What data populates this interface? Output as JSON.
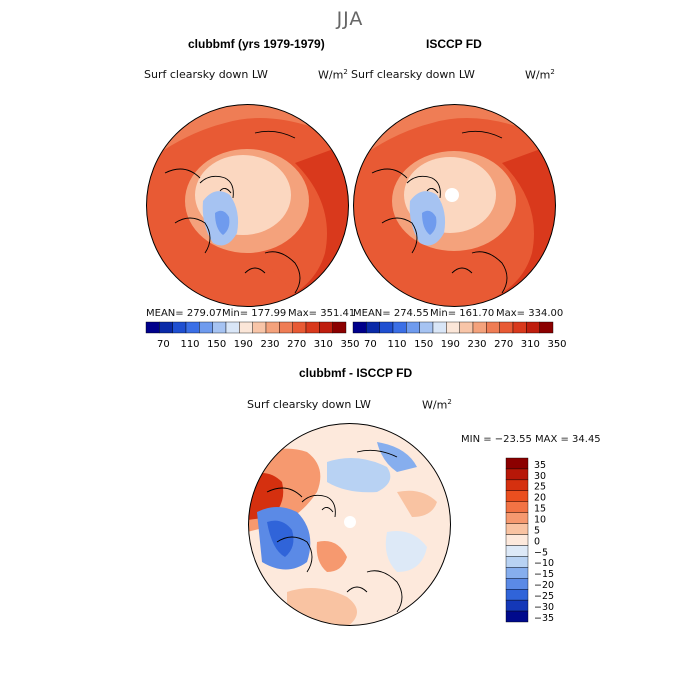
{
  "season": "JJA",
  "panels": [
    {
      "title": "clubbmf (yrs 1979-1979)",
      "variable": "Surf clearsky down LW",
      "units": "W/m",
      "units_exp": "2",
      "stats": {
        "mean": "MEAN= 279.07",
        "min": "Min= 177.99",
        "max": "Max= 351.41"
      }
    },
    {
      "title": "ISCCP FD",
      "variable": "Surf clearsky down LW",
      "units": "W/m",
      "units_exp": "2",
      "stats": {
        "mean": "MEAN= 274.55",
        "min": "Min= 161.70",
        "max": "Max= 334.00"
      }
    },
    {
      "title": "clubbmf - ISCCP FD",
      "variable": "Surf clearsky down LW",
      "units": "W/m",
      "units_exp": "2",
      "stats": {
        "minmax": "MIN = −23.55 MAX =  34.45"
      }
    }
  ],
  "colorbar_top": {
    "ticks": [
      "70",
      "110",
      "150",
      "190",
      "230",
      "270",
      "310",
      "350"
    ],
    "colors": [
      "#00008b",
      "#0a2aa8",
      "#1f4fd1",
      "#3b6fe6",
      "#6f9bee",
      "#a6c3f2",
      "#d9e6f7",
      "#fbe6d8",
      "#f8c5a8",
      "#f4a27c",
      "#ef7d55",
      "#e85a34",
      "#d9391c",
      "#bf1e0e",
      "#8b0000"
    ]
  },
  "colorbar_diff": {
    "ticks": [
      "35",
      "30",
      "25",
      "20",
      "15",
      "10",
      "5",
      "0",
      "−5",
      "−10",
      "−15",
      "−20",
      "−25",
      "−30",
      "−35"
    ],
    "colors": [
      "#8b0000",
      "#b71708",
      "#d5300f",
      "#ea4f1f",
      "#f27344",
      "#f6996f",
      "#f9c3a2",
      "#fde9dc",
      "#dde9f7",
      "#b8d2f3",
      "#86aeee",
      "#5b8ae6",
      "#3064d9",
      "#1438b8",
      "#000a8c"
    ]
  },
  "map_colors": {
    "ocean_warm": "#e85a34",
    "mid": "#f4a27c",
    "pale": "#fbd7c0",
    "greenland": "#a6c3f2",
    "greenland_core": "#6f9bee",
    "diff_base": "#fde9dc"
  }
}
